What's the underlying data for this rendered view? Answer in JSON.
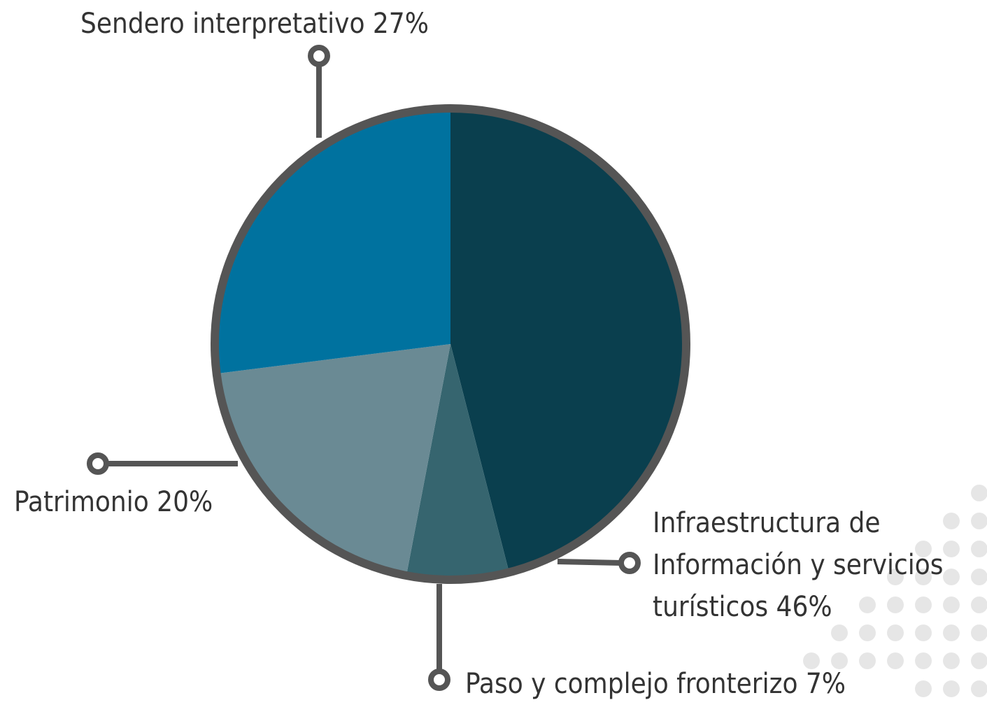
{
  "chart_data": {
    "type": "pie",
    "categories": [
      "Infraestructura de Información y servicios turísticos",
      "Paso y complejo fronterizo",
      "Patrimonio",
      "Sendero interpretativo"
    ],
    "values": [
      46,
      7,
      20,
      27
    ],
    "value_labels": [
      "46%",
      "7%",
      "20%",
      "27%"
    ],
    "colors": [
      "#0a3f4e",
      "#36656f",
      "#6a8a94",
      "#00729f"
    ]
  }
}
